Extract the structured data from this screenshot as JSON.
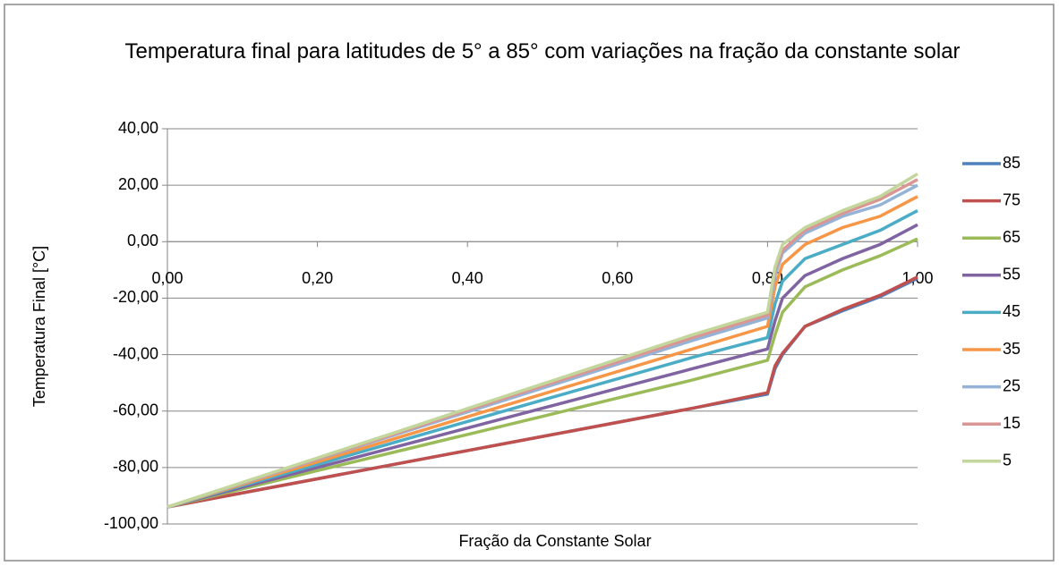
{
  "chart_data": {
    "type": "line",
    "title": "Temperatura final para latitudes de 5° a 85° com variações na fração da constante solar",
    "xlabel": "Fração da Constante Solar",
    "ylabel": "Temperatura Final [°C]",
    "x": [
      0,
      0.1,
      0.2,
      0.3,
      0.4,
      0.5,
      0.6,
      0.7,
      0.8,
      0.81,
      0.82,
      0.85,
      0.9,
      0.95,
      1.0
    ],
    "series": [
      {
        "name": "85",
        "color": "#4F81BD",
        "values": [
          -94,
          -89,
          -84,
          -79,
          -74,
          -69,
          -64,
          -59,
          -54,
          -45,
          -40,
          -30,
          -24.5,
          -19.5,
          -13
        ]
      },
      {
        "name": "75",
        "color": "#C0504D",
        "values": [
          -94,
          -89,
          -84,
          -79,
          -74,
          -69,
          -64,
          -59,
          -53.5,
          -44,
          -39.5,
          -30,
          -24,
          -19,
          -12.5
        ]
      },
      {
        "name": "65",
        "color": "#9BBB59",
        "values": [
          -94,
          -87.6,
          -81.1,
          -74.7,
          -68.3,
          -61.9,
          -55.4,
          -49,
          -42,
          -33,
          -25,
          -16,
          -10,
          -5,
          1
        ]
      },
      {
        "name": "55",
        "color": "#8064A2",
        "values": [
          -94,
          -87,
          -80,
          -73,
          -66,
          -59,
          -52,
          -45,
          -38,
          -28,
          -20,
          -12,
          -6,
          -1,
          6
        ]
      },
      {
        "name": "45",
        "color": "#4BACC6",
        "values": [
          -94,
          -86.4,
          -78.9,
          -71.3,
          -63.7,
          -56.1,
          -48.6,
          -41,
          -34,
          -22,
          -14,
          -6,
          -1,
          4,
          11
        ]
      },
      {
        "name": "35",
        "color": "#F79646",
        "values": [
          -94,
          -86,
          -78,
          -70,
          -62,
          -54,
          -46,
          -38,
          -30,
          -16,
          -8,
          -1,
          5,
          9,
          16
        ]
      },
      {
        "name": "25",
        "color": "#95B3D7",
        "values": [
          -94,
          -85.6,
          -77.1,
          -68.7,
          -60.3,
          -51.9,
          -43.4,
          -35,
          -27,
          -12,
          -4,
          3,
          9,
          13,
          20
        ]
      },
      {
        "name": "15",
        "color": "#D99694",
        "values": [
          -94,
          -85.4,
          -76.9,
          -68.3,
          -59.7,
          -51.1,
          -42.6,
          -34,
          -26,
          -10,
          -3,
          4,
          10,
          15,
          22
        ]
      },
      {
        "name": "5",
        "color": "#C3D69B",
        "values": [
          -94,
          -85.3,
          -76.6,
          -67.9,
          -59.1,
          -50.4,
          -41.7,
          -33,
          -25,
          -9,
          -1,
          5,
          11,
          16,
          24
        ]
      }
    ],
    "xlim": [
      0,
      1
    ],
    "xticks": [
      {
        "value": 0,
        "label": "0,00"
      },
      {
        "value": 0.2,
        "label": "0,20"
      },
      {
        "value": 0.4,
        "label": "0,40"
      },
      {
        "value": 0.6,
        "label": "0,60"
      },
      {
        "value": 0.8,
        "label": "0,80"
      },
      {
        "value": 1,
        "label": "1,00"
      }
    ],
    "ylim": [
      -100,
      40
    ],
    "yticks": [
      {
        "value": -100,
        "label": "-100,00"
      },
      {
        "value": -80,
        "label": "-80,00"
      },
      {
        "value": -60,
        "label": "-60,00"
      },
      {
        "value": -40,
        "label": "-40,00"
      },
      {
        "value": -20,
        "label": "-20,00"
      },
      {
        "value": 0,
        "label": "0,00"
      },
      {
        "value": 20,
        "label": "20,00"
      },
      {
        "value": 40,
        "label": "40,00"
      }
    ],
    "grid": true,
    "legend": "right"
  }
}
